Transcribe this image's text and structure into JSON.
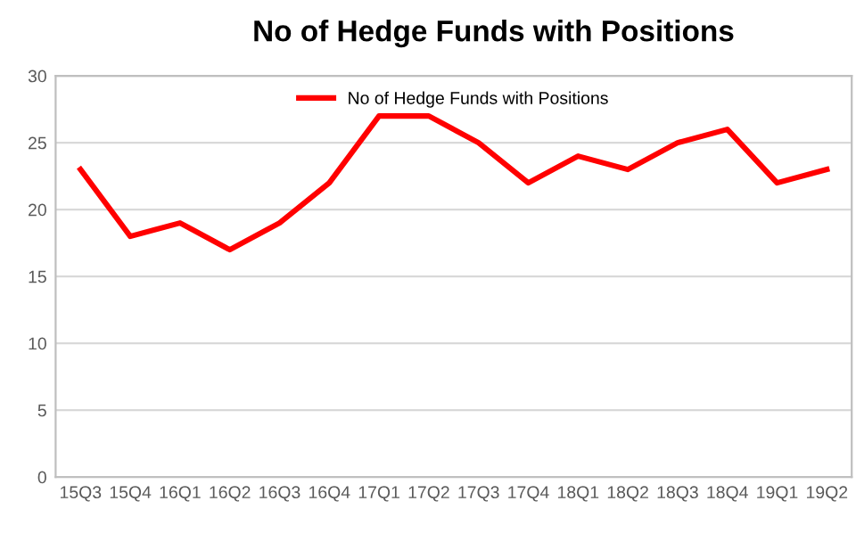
{
  "chart_data": {
    "type": "line",
    "title": "No of Hedge Funds with Positions",
    "categories": [
      "15Q3",
      "15Q4",
      "16Q1",
      "16Q2",
      "16Q3",
      "16Q4",
      "17Q1",
      "17Q2",
      "17Q3",
      "17Q4",
      "18Q1",
      "18Q2",
      "18Q3",
      "18Q4",
      "19Q1",
      "19Q2"
    ],
    "series": [
      {
        "name": "No of Hedge Funds with Positions",
        "color": "#ff0000",
        "values": [
          23,
          18,
          19,
          17,
          19,
          22,
          27,
          27,
          25,
          22,
          24,
          23,
          25,
          26,
          22,
          23
        ]
      }
    ],
    "ylim": [
      0,
      30
    ],
    "yticks": [
      0,
      5,
      10,
      15,
      20,
      25,
      30
    ],
    "grid": "y",
    "legend": "top",
    "marker": "none",
    "line_style": "solid"
  }
}
